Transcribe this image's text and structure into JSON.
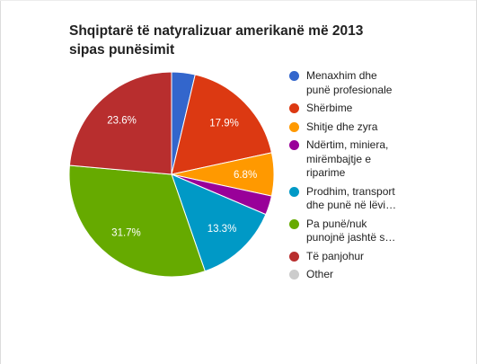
{
  "chart_data": {
    "type": "pie",
    "title": "Shqiptarë të natyralizuar amerikanë më 2013 sipas punësimit",
    "title_lines": [
      "Shqiptarë të natyralizuar amerikanë më 2013",
      "sipas punësimit"
    ],
    "legend_position": "right",
    "slices": [
      {
        "label": "Menaxhim dhe punë profesionale",
        "legend_text": "Menaxhim dhe\npunë profesionale",
        "value": 3.7,
        "color": "#3366cc",
        "data_label": ""
      },
      {
        "label": "Shërbime",
        "legend_text": "Shërbime",
        "value": 17.9,
        "color": "#dc3912",
        "data_label": "17.9%"
      },
      {
        "label": "Shitje dhe zyra",
        "legend_text": "Shitje dhe zyra",
        "value": 6.8,
        "color": "#ff9900",
        "data_label": "6.8%"
      },
      {
        "label": "Ndërtim, miniera, mirëmbajtje e riparime",
        "legend_text": "Ndërtim, miniera,\nmirëmbajtje e\nriparime",
        "value": 3.0,
        "color": "#990099",
        "data_label": ""
      },
      {
        "label": "Prodhim, transport dhe punë në lëvi…",
        "legend_text": "Prodhim, transport\ndhe punë në lëvi…",
        "value": 13.3,
        "color": "#0099c6",
        "data_label": "13.3%"
      },
      {
        "label": "Pa punë/nuk punojnë jashtë s…",
        "legend_text": "Pa punë/nuk\npunojnë jashtë s…",
        "value": 31.7,
        "color": "#66aa00",
        "data_label": "31.7%"
      },
      {
        "label": "Të panjohur",
        "legend_text": "Të panjohur",
        "value": 23.6,
        "color": "#b82e2e",
        "data_label": "23.6%"
      },
      {
        "label": "Other",
        "legend_text": "Other",
        "value": 0,
        "color": "#cccccc",
        "data_label": ""
      }
    ]
  }
}
